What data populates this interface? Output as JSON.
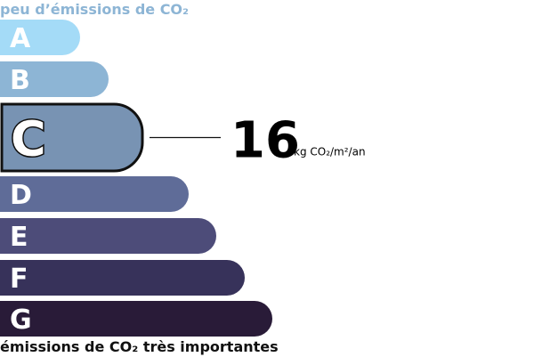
{
  "top_label": "peu d’émissions de CO₂",
  "bottom_label": "émissions de CO₂ très importantes",
  "classes": [
    {
      "letter": "A",
      "color": "#a4dbf7"
    },
    {
      "letter": "B",
      "color": "#8db5d5"
    },
    {
      "letter": "C",
      "color": "#7893b3"
    },
    {
      "letter": "D",
      "color": "#5f6c98"
    },
    {
      "letter": "E",
      "color": "#4d4c79"
    },
    {
      "letter": "F",
      "color": "#37325a"
    },
    {
      "letter": "G",
      "color": "#291b38"
    }
  ],
  "highlighted": "C",
  "value": 16,
  "unit": "kg CO₂/m²/an"
}
